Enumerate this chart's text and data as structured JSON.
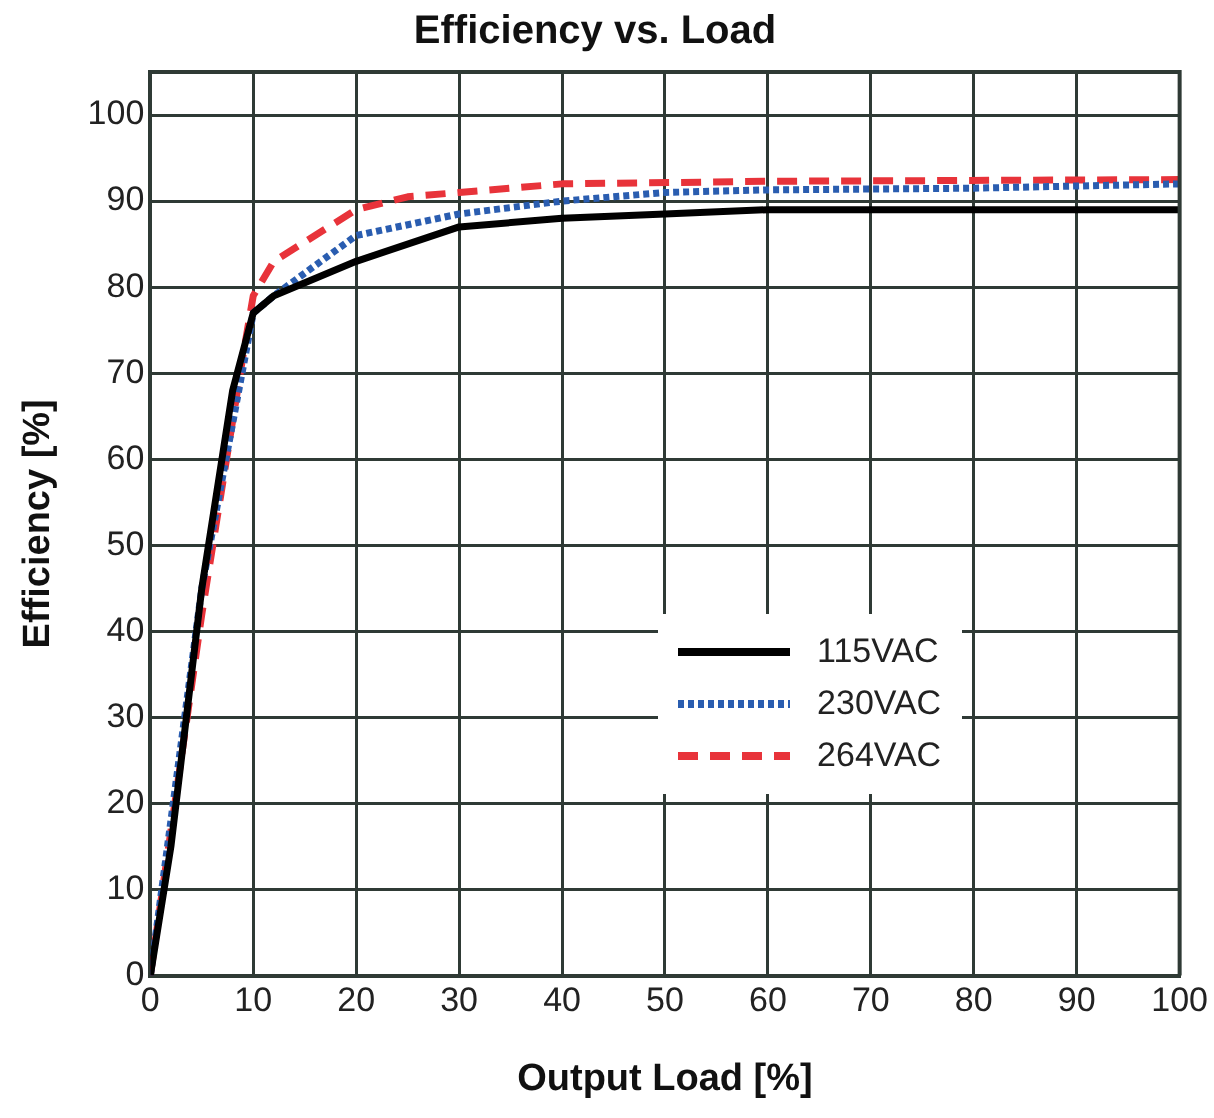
{
  "chart_data": {
    "type": "line",
    "title": "Efficiency vs. Load",
    "xlabel": "Output Load [%]",
    "ylabel": "Efficiency [%]",
    "xlim": [
      0,
      100
    ],
    "xticks": [
      0,
      10,
      20,
      30,
      40,
      50,
      60,
      70,
      80,
      90,
      100
    ],
    "ylim": [
      0,
      105
    ],
    "yticks": [
      0,
      10,
      20,
      30,
      40,
      50,
      60,
      70,
      80,
      90,
      100
    ],
    "grid": true,
    "legend": "center",
    "marker": "none",
    "series": [
      {
        "name": "115VAC",
        "color": "#000000",
        "line_style": "solid",
        "x": [
          0,
          2,
          5,
          8,
          10,
          12,
          20,
          30,
          40,
          50,
          60,
          100
        ],
        "values": [
          0,
          15,
          45,
          68,
          77,
          79,
          83,
          87,
          88,
          88.5,
          89,
          89
        ]
      },
      {
        "name": "230VAC",
        "color": "#2a5db0",
        "line_style": "dotted",
        "x": [
          0,
          5,
          10,
          12,
          20,
          30,
          40,
          50,
          60,
          80,
          100
        ],
        "values": [
          0,
          45,
          77,
          79,
          86,
          88.5,
          90,
          91,
          91.3,
          91.5,
          92
        ]
      },
      {
        "name": "264VAC",
        "color": "#e8333a",
        "line_style": "dashed",
        "x": [
          0,
          5,
          9,
          10,
          12,
          20,
          25,
          30,
          40,
          60,
          100
        ],
        "values": [
          0,
          42,
          72,
          79,
          83,
          89,
          90.5,
          91,
          92,
          92.3,
          92.5
        ]
      }
    ]
  }
}
